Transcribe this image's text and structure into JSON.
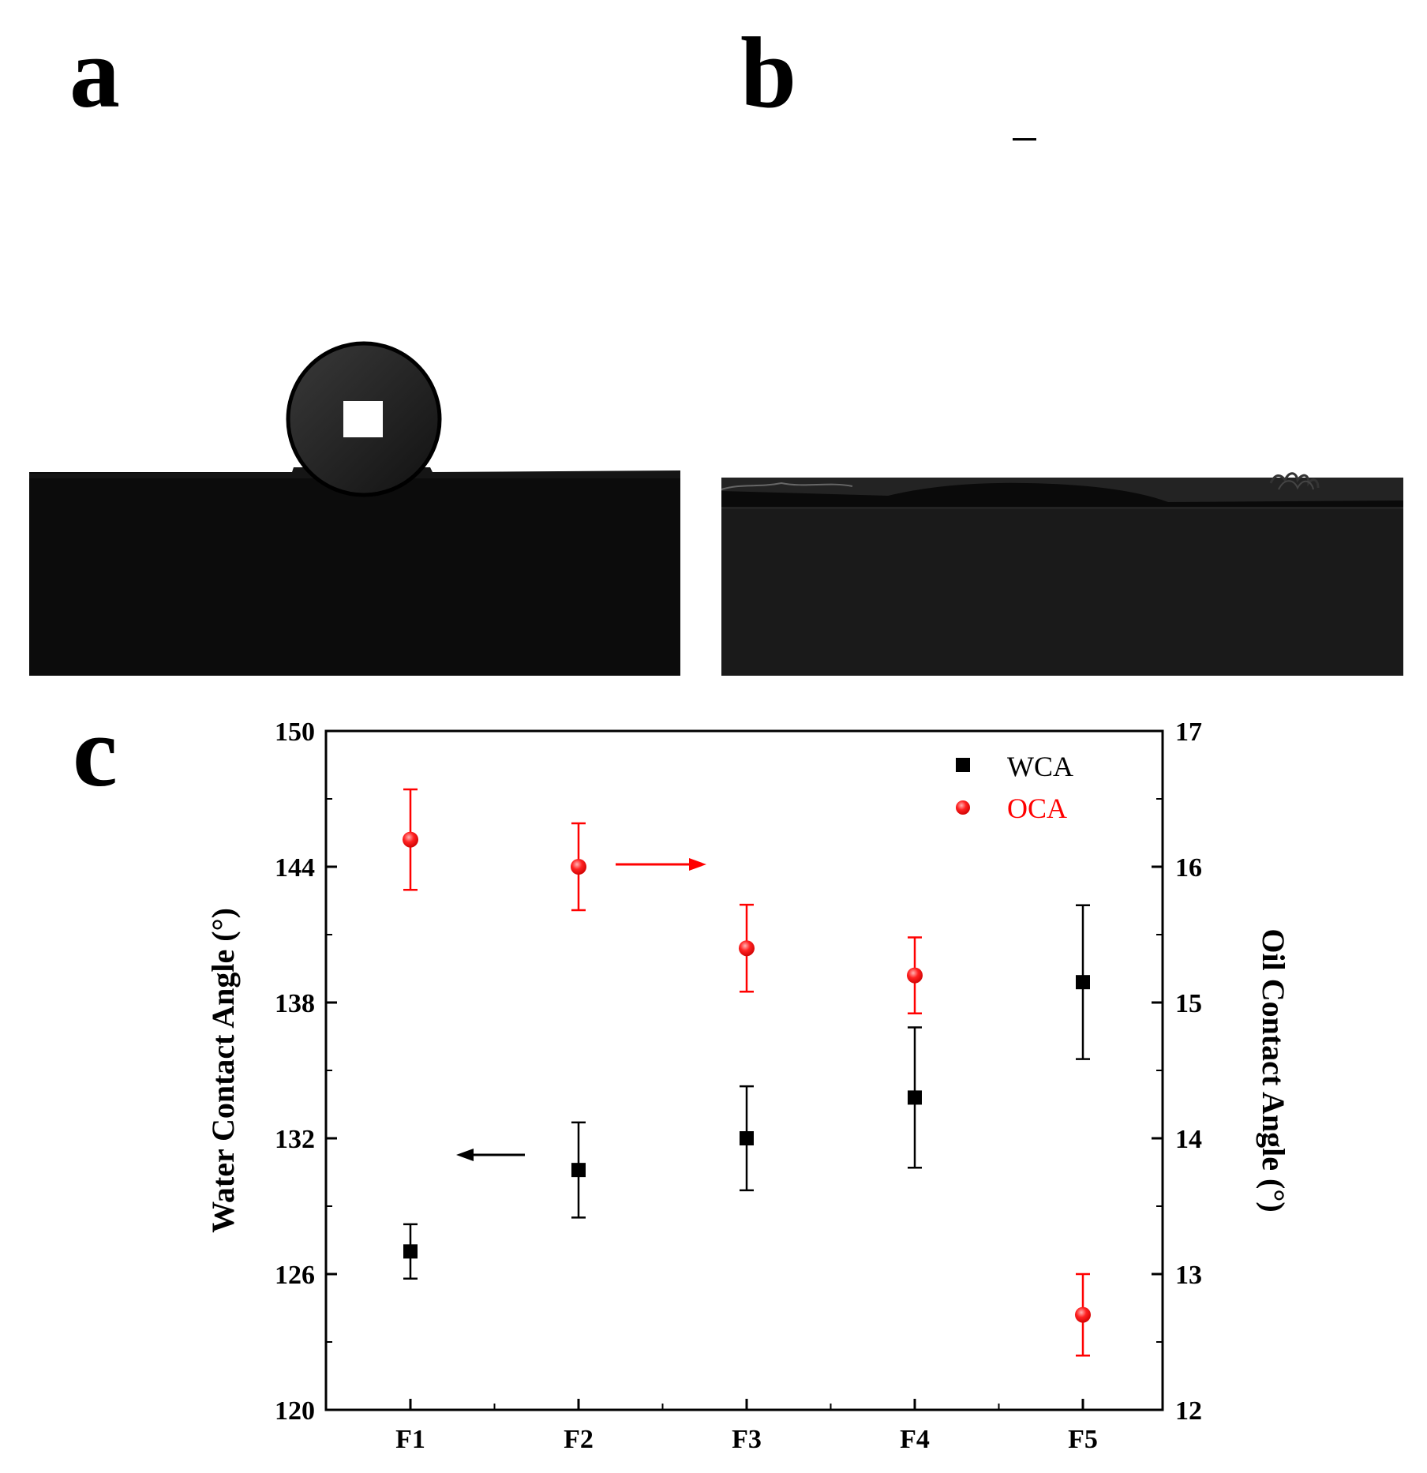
{
  "panels": {
    "a": "a",
    "b": "b",
    "c": "c"
  },
  "chart_data": {
    "type": "scatter",
    "categories": [
      "F1",
      "F2",
      "F3",
      "F4",
      "F5"
    ],
    "y_left": {
      "label": "Water Contact Angle (°)",
      "ylim": [
        120,
        150
      ],
      "ticks": [
        120,
        126,
        132,
        138,
        144,
        150
      ]
    },
    "y_right": {
      "label": "Oil Contact Angle (°)",
      "ylim": [
        12,
        17
      ],
      "ticks": [
        12,
        13,
        14,
        15,
        16,
        17
      ]
    },
    "series": [
      {
        "name": "WCA",
        "axis": "left",
        "color": "#000000",
        "marker": "square",
        "values": [
          127.0,
          130.6,
          132.0,
          133.8,
          138.9
        ],
        "errors": [
          1.2,
          2.1,
          2.3,
          3.1,
          3.4
        ]
      },
      {
        "name": "OCA",
        "axis": "right",
        "color": "#ff0000",
        "marker": "circle",
        "values": [
          16.2,
          16.0,
          15.4,
          15.2,
          12.7
        ],
        "errors": [
          0.37,
          0.32,
          0.32,
          0.28,
          0.3
        ]
      }
    ],
    "grid": false,
    "legend": "top-right"
  }
}
